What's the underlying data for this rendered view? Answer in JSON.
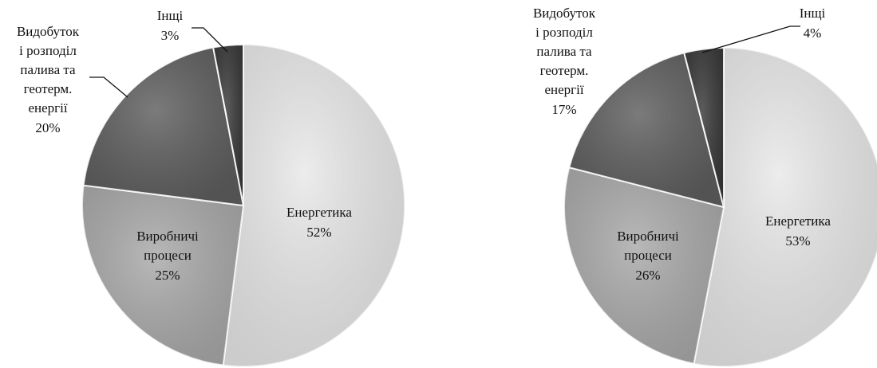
{
  "chart_data": [
    {
      "type": "pie",
      "categories": [
        "Енергетика",
        "Виробничі процеси",
        "Видобуток і розподіл палива та геотерм. енергії",
        "Інщі"
      ],
      "values": [
        52,
        25,
        20,
        3
      ],
      "value_labels": [
        "52%",
        "25%",
        "20%",
        "3%"
      ],
      "colors": [
        "#e8e8e8",
        "#a9a9a9",
        "#5e5e5e",
        "#383838"
      ]
    },
    {
      "type": "pie",
      "categories": [
        "Енергетика",
        "Виробничі процеси",
        "Видобуток і розподіл палива та геотерм. енергії",
        "Інщі"
      ],
      "values": [
        53,
        26,
        17,
        4
      ],
      "value_labels": [
        "53%",
        "26%",
        "17%",
        "4%"
      ],
      "colors": [
        "#e8e8e8",
        "#a9a9a9",
        "#5e5e5e",
        "#383838"
      ]
    }
  ]
}
